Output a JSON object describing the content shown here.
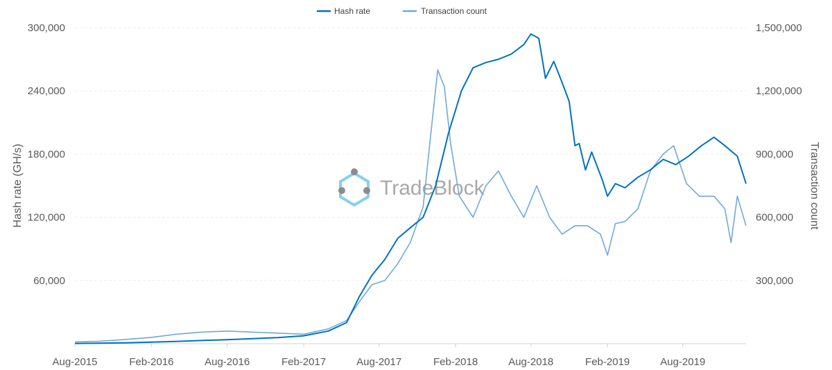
{
  "watermark": "TradeBlock",
  "chart_data": {
    "type": "line",
    "legend_position": "top-center",
    "grid": true,
    "x_ticks": [
      "Aug-2015",
      "Feb-2016",
      "Aug-2016",
      "Feb-2017",
      "Aug-2017",
      "Feb-2018",
      "Aug-2018",
      "Feb-2019",
      "Aug-2019"
    ],
    "x_range": [
      "2015-08-01",
      "2019-12-31"
    ],
    "y_left": {
      "label": "Hash rate (GH/s)",
      "ticks": [
        "60,000",
        "120,000",
        "180,000",
        "240,000",
        "300,000"
      ],
      "range": [
        0,
        300000
      ]
    },
    "y_right": {
      "label": "Transaction count",
      "ticks": [
        "300,000",
        "600,000",
        "900,000",
        "1,200,000",
        "1,500,000"
      ],
      "range": [
        0,
        1500000
      ]
    },
    "series": [
      {
        "name": "Hash rate",
        "axis": "left",
        "color": "#0070c0",
        "points": [
          [
            "2015-08-01",
            200
          ],
          [
            "2015-10-01",
            500
          ],
          [
            "2015-12-01",
            800
          ],
          [
            "2016-02-01",
            1500
          ],
          [
            "2016-04-01",
            2200
          ],
          [
            "2016-06-01",
            3000
          ],
          [
            "2016-08-01",
            3800
          ],
          [
            "2016-10-01",
            4800
          ],
          [
            "2016-12-01",
            5800
          ],
          [
            "2017-02-01",
            7500
          ],
          [
            "2017-04-01",
            12000
          ],
          [
            "2017-05-15",
            20000
          ],
          [
            "2017-06-15",
            45000
          ],
          [
            "2017-07-15",
            65000
          ],
          [
            "2017-08-15",
            80000
          ],
          [
            "2017-09-15",
            100000
          ],
          [
            "2017-10-15",
            110000
          ],
          [
            "2017-11-15",
            120000
          ],
          [
            "2017-12-15",
            150000
          ],
          [
            "2018-01-15",
            200000
          ],
          [
            "2018-02-15",
            240000
          ],
          [
            "2018-03-15",
            262000
          ],
          [
            "2018-04-15",
            267000
          ],
          [
            "2018-05-15",
            270000
          ],
          [
            "2018-06-15",
            275000
          ],
          [
            "2018-07-15",
            284000
          ],
          [
            "2018-08-01",
            294000
          ],
          [
            "2018-08-20",
            290000
          ],
          [
            "2018-09-05",
            252000
          ],
          [
            "2018-09-25",
            268000
          ],
          [
            "2018-10-15",
            248000
          ],
          [
            "2018-11-01",
            230000
          ],
          [
            "2018-11-15",
            188000
          ],
          [
            "2018-11-25",
            190000
          ],
          [
            "2018-12-10",
            165000
          ],
          [
            "2018-12-25",
            182000
          ],
          [
            "2019-01-20",
            155000
          ],
          [
            "2019-02-01",
            140000
          ],
          [
            "2019-02-20",
            152000
          ],
          [
            "2019-03-15",
            148000
          ],
          [
            "2019-04-15",
            158000
          ],
          [
            "2019-05-15",
            165000
          ],
          [
            "2019-06-15",
            175000
          ],
          [
            "2019-07-15",
            170000
          ],
          [
            "2019-08-15",
            178000
          ],
          [
            "2019-09-15",
            188000
          ],
          [
            "2019-10-15",
            196000
          ],
          [
            "2019-11-10",
            188000
          ],
          [
            "2019-12-10",
            178000
          ],
          [
            "2019-12-31",
            152000
          ]
        ]
      },
      {
        "name": "Transaction count",
        "axis": "right",
        "color": "#6fa8dc",
        "points": [
          [
            "2015-08-01",
            8000
          ],
          [
            "2015-10-01",
            12000
          ],
          [
            "2015-12-01",
            20000
          ],
          [
            "2016-02-01",
            30000
          ],
          [
            "2016-04-01",
            45000
          ],
          [
            "2016-06-01",
            55000
          ],
          [
            "2016-08-01",
            60000
          ],
          [
            "2016-10-01",
            55000
          ],
          [
            "2016-12-01",
            50000
          ],
          [
            "2017-02-01",
            45000
          ],
          [
            "2017-04-01",
            70000
          ],
          [
            "2017-05-15",
            110000
          ],
          [
            "2017-06-15",
            200000
          ],
          [
            "2017-07-15",
            280000
          ],
          [
            "2017-08-15",
            300000
          ],
          [
            "2017-09-15",
            380000
          ],
          [
            "2017-10-15",
            480000
          ],
          [
            "2017-11-15",
            650000
          ],
          [
            "2017-12-01",
            950000
          ],
          [
            "2017-12-20",
            1300000
          ],
          [
            "2018-01-05",
            1220000
          ],
          [
            "2018-01-20",
            950000
          ],
          [
            "2018-02-10",
            700000
          ],
          [
            "2018-03-15",
            600000
          ],
          [
            "2018-04-15",
            750000
          ],
          [
            "2018-05-15",
            820000
          ],
          [
            "2018-06-15",
            700000
          ],
          [
            "2018-07-15",
            600000
          ],
          [
            "2018-08-15",
            750000
          ],
          [
            "2018-09-15",
            600000
          ],
          [
            "2018-10-15",
            520000
          ],
          [
            "2018-11-15",
            560000
          ],
          [
            "2018-12-15",
            560000
          ],
          [
            "2019-01-15",
            520000
          ],
          [
            "2019-02-01",
            420000
          ],
          [
            "2019-02-20",
            570000
          ],
          [
            "2019-03-15",
            580000
          ],
          [
            "2019-04-15",
            640000
          ],
          [
            "2019-05-15",
            820000
          ],
          [
            "2019-06-15",
            900000
          ],
          [
            "2019-07-10",
            940000
          ],
          [
            "2019-08-10",
            760000
          ],
          [
            "2019-09-10",
            700000
          ],
          [
            "2019-10-15",
            700000
          ],
          [
            "2019-11-10",
            640000
          ],
          [
            "2019-11-25",
            480000
          ],
          [
            "2019-12-10",
            700000
          ],
          [
            "2019-12-31",
            560000
          ]
        ]
      }
    ]
  }
}
